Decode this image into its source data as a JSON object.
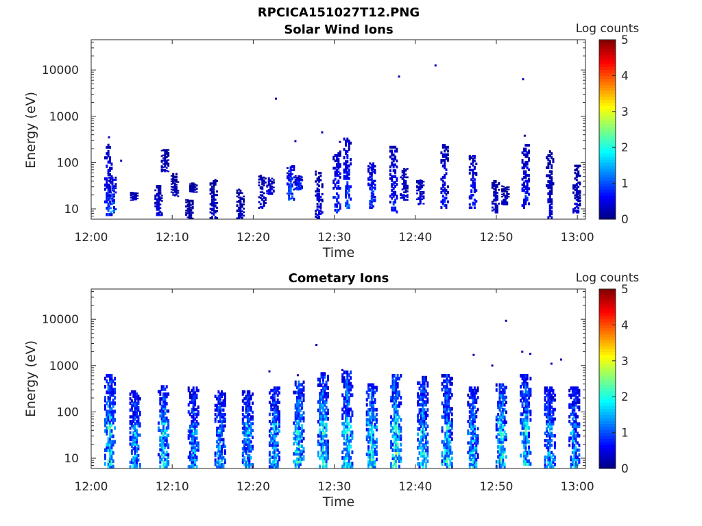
{
  "figure": {
    "title": "RPCICA151027T12.PNG"
  },
  "chart_data": [
    {
      "type": "heatmap",
      "title": "Solar Wind Ions",
      "xlabel": "Time",
      "ylabel": "Energy (eV)",
      "yscale": "log",
      "xlim": [
        "12:00",
        "13:01"
      ],
      "ylim": [
        6,
        45000
      ],
      "x_ticks": [
        "12:00",
        "12:10",
        "12:20",
        "12:30",
        "12:40",
        "12:50",
        "13:00"
      ],
      "y_ticks": [
        "10",
        "100",
        "1000",
        "10000"
      ],
      "colorbar": {
        "label": "Log counts",
        "min": 0,
        "max": 5,
        "ticks": [
          "0",
          "1",
          "2",
          "3",
          "4",
          "5"
        ],
        "colormap": "jet"
      },
      "clusters": [
        {
          "t": 2.0,
          "emin": 7,
          "emax": 220,
          "peak": 1.1
        },
        {
          "t": 2.5,
          "emin": 8,
          "emax": 45,
          "peak": 1.6
        },
        {
          "t": 5.2,
          "emin": 15,
          "emax": 22,
          "peak": 0.6
        },
        {
          "t": 8.2,
          "emin": 7,
          "emax": 30,
          "peak": 0.8
        },
        {
          "t": 9.0,
          "emin": 60,
          "emax": 180,
          "peak": 0.5
        },
        {
          "t": 10.2,
          "emin": 18,
          "emax": 55,
          "peak": 0.5
        },
        {
          "t": 12.0,
          "emin": 6,
          "emax": 15,
          "peak": 0.4
        },
        {
          "t": 12.5,
          "emin": 22,
          "emax": 35,
          "peak": 0.4
        },
        {
          "t": 15.0,
          "emin": 6,
          "emax": 40,
          "peak": 0.5
        },
        {
          "t": 18.3,
          "emin": 6,
          "emax": 25,
          "peak": 0.5
        },
        {
          "t": 21.0,
          "emin": 10,
          "emax": 50,
          "peak": 0.6
        },
        {
          "t": 22.0,
          "emin": 20,
          "emax": 45,
          "peak": 0.8
        },
        {
          "t": 24.5,
          "emin": 15,
          "emax": 80,
          "peak": 1.6
        },
        {
          "t": 25.5,
          "emin": 25,
          "emax": 50,
          "peak": 1.3
        },
        {
          "t": 28.0,
          "emin": 6,
          "emax": 60,
          "peak": 0.7
        },
        {
          "t": 30.2,
          "emin": 8,
          "emax": 160,
          "peak": 1.2
        },
        {
          "t": 31.5,
          "emin": 10,
          "emax": 300,
          "peak": 1.4
        },
        {
          "t": 34.5,
          "emin": 10,
          "emax": 90,
          "peak": 1.3
        },
        {
          "t": 37.2,
          "emin": 8,
          "emax": 200,
          "peak": 1.1
        },
        {
          "t": 38.5,
          "emin": 15,
          "emax": 70,
          "peak": 0.7
        },
        {
          "t": 40.5,
          "emin": 12,
          "emax": 40,
          "peak": 0.8
        },
        {
          "t": 43.5,
          "emin": 10,
          "emax": 220,
          "peak": 0.9
        },
        {
          "t": 47.0,
          "emin": 10,
          "emax": 130,
          "peak": 1.0
        },
        {
          "t": 49.8,
          "emin": 8,
          "emax": 40,
          "peak": 0.6
        },
        {
          "t": 51.0,
          "emin": 12,
          "emax": 30,
          "peak": 0.5
        },
        {
          "t": 53.5,
          "emin": 10,
          "emax": 220,
          "peak": 1.0
        },
        {
          "t": 56.5,
          "emin": 6,
          "emax": 160,
          "peak": 0.6
        },
        {
          "t": 59.8,
          "emin": 8,
          "emax": 80,
          "peak": 0.6
        }
      ],
      "dots": [
        {
          "t": 22.8,
          "e": 2400
        },
        {
          "t": 38.0,
          "e": 7200
        },
        {
          "t": 42.5,
          "e": 12500
        },
        {
          "t": 53.3,
          "e": 6300
        },
        {
          "t": 28.5,
          "e": 450
        },
        {
          "t": 25.2,
          "e": 290
        },
        {
          "t": 2.2,
          "e": 350
        },
        {
          "t": 3.7,
          "e": 110
        },
        {
          "t": 30.7,
          "e": 280
        },
        {
          "t": 53.5,
          "e": 380
        }
      ]
    },
    {
      "type": "heatmap",
      "title": "Cometary Ions",
      "xlabel": "Time",
      "ylabel": "Energy (eV)",
      "yscale": "log",
      "xlim": [
        "12:00",
        "13:01"
      ],
      "ylim": [
        6,
        45000
      ],
      "x_ticks": [
        "12:00",
        "12:10",
        "12:20",
        "12:30",
        "12:40",
        "12:50",
        "13:00"
      ],
      "y_ticks": [
        "10",
        "100",
        "1000",
        "10000"
      ],
      "colorbar": {
        "label": "Log counts",
        "min": 0,
        "max": 5,
        "ticks": [
          "0",
          "1",
          "2",
          "3",
          "4",
          "5"
        ],
        "colormap": "jet"
      },
      "clusters": [
        {
          "t": 2.2,
          "emin": 6,
          "emax": 550,
          "peak": 2.6
        },
        {
          "t": 5.3,
          "emin": 6,
          "emax": 250,
          "peak": 2.0
        },
        {
          "t": 8.8,
          "emin": 6,
          "emax": 320,
          "peak": 2.3
        },
        {
          "t": 12.5,
          "emin": 6,
          "emax": 300,
          "peak": 2.0
        },
        {
          "t": 15.8,
          "emin": 6,
          "emax": 250,
          "peak": 2.0
        },
        {
          "t": 19.2,
          "emin": 6,
          "emax": 250,
          "peak": 2.1
        },
        {
          "t": 22.5,
          "emin": 6,
          "emax": 300,
          "peak": 2.2
        },
        {
          "t": 25.5,
          "emin": 6,
          "emax": 400,
          "peak": 2.5
        },
        {
          "t": 28.5,
          "emin": 6,
          "emax": 600,
          "peak": 2.6
        },
        {
          "t": 31.5,
          "emin": 6,
          "emax": 650,
          "peak": 2.5
        },
        {
          "t": 34.5,
          "emin": 6,
          "emax": 350,
          "peak": 2.6
        },
        {
          "t": 37.5,
          "emin": 6,
          "emax": 550,
          "peak": 2.8
        },
        {
          "t": 40.8,
          "emin": 6,
          "emax": 500,
          "peak": 2.4
        },
        {
          "t": 43.8,
          "emin": 6,
          "emax": 550,
          "peak": 2.4
        },
        {
          "t": 47.0,
          "emin": 6,
          "emax": 300,
          "peak": 2.2
        },
        {
          "t": 50.5,
          "emin": 6,
          "emax": 350,
          "peak": 2.6
        },
        {
          "t": 53.5,
          "emin": 6,
          "emax": 550,
          "peak": 2.4
        },
        {
          "t": 56.5,
          "emin": 6,
          "emax": 300,
          "peak": 2.1
        },
        {
          "t": 59.5,
          "emin": 6,
          "emax": 300,
          "peak": 2.1
        }
      ],
      "dots": [
        {
          "t": 27.8,
          "e": 2800
        },
        {
          "t": 51.2,
          "e": 9300
        },
        {
          "t": 47.2,
          "e": 1700
        },
        {
          "t": 53.2,
          "e": 2000
        },
        {
          "t": 54.2,
          "e": 1800
        },
        {
          "t": 58.0,
          "e": 1350
        },
        {
          "t": 56.8,
          "e": 1100
        },
        {
          "t": 22.0,
          "e": 750
        },
        {
          "t": 25.5,
          "e": 620
        },
        {
          "t": 49.5,
          "e": 1000
        },
        {
          "t": 31.0,
          "e": 800
        }
      ]
    }
  ]
}
